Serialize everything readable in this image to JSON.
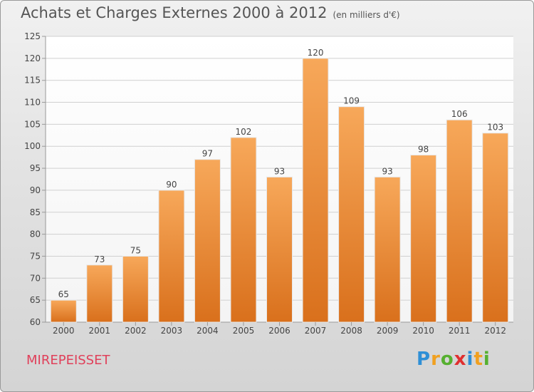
{
  "title": "Achats et Charges Externes 2000 à 2012",
  "subtitle": "(en milliers d'€)",
  "commune": "MIREPEISSET",
  "logo": {
    "letters": [
      "P",
      "r",
      "o",
      "x",
      "i",
      "t",
      "i"
    ],
    "colors": [
      "#2e8fd6",
      "#f0a020",
      "#56b030",
      "#e03030",
      "#2e8fd6",
      "#f0a020",
      "#56b030"
    ]
  },
  "chart_data": {
    "type": "bar",
    "categories": [
      "2000",
      "2001",
      "2002",
      "2003",
      "2004",
      "2005",
      "2006",
      "2007",
      "2008",
      "2009",
      "2010",
      "2011",
      "2012"
    ],
    "values": [
      65,
      73,
      75,
      90,
      97,
      102,
      93,
      120,
      109,
      93,
      98,
      106,
      103
    ],
    "title": "Achats et Charges Externes 2000 à 2012",
    "subtitle": "(en milliers d'€)",
    "xlabel": "",
    "ylabel": "",
    "ylim": [
      60,
      125
    ],
    "yticks": [
      60,
      65,
      70,
      75,
      80,
      85,
      90,
      95,
      100,
      105,
      110,
      115,
      120,
      125
    ],
    "grid": true,
    "bar_color": "#f0963c"
  }
}
